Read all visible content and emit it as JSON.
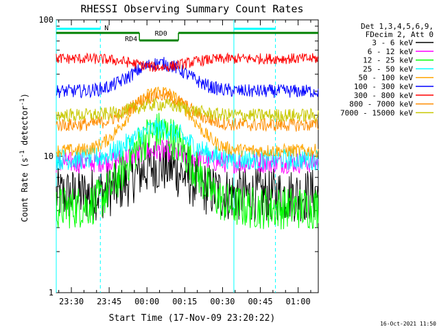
{
  "chart_data": {
    "type": "line",
    "title": "RHESSI Observing Summary Count Rates",
    "xlabel": "Start Time (17-Nov-09 23:20:22)",
    "ylabel_main": "Count Rate (s",
    "ylabel_sup1": "-1",
    "ylabel_mid": " detector",
    "ylabel_sup2": "-1",
    "ylabel_end": ")",
    "y_scale": "log",
    "ylim": [
      1,
      100
    ],
    "y_ticks": [
      {
        "value": 1,
        "label": "1"
      },
      {
        "value": 10,
        "label": "10"
      },
      {
        "value": 100,
        "label": "100"
      }
    ],
    "xlim_minutes": [
      -36.0,
      68.0
    ],
    "x_ticks": [
      {
        "minute": -30,
        "label": "23:30"
      },
      {
        "minute": -15,
        "label": "23:45"
      },
      {
        "minute": 0,
        "label": "00:00"
      },
      {
        "minute": 15,
        "label": "00:15"
      },
      {
        "minute": 30,
        "label": "00:30"
      },
      {
        "minute": 45,
        "label": "00:45"
      },
      {
        "minute": 60,
        "label": "01:00"
      }
    ],
    "legend_header": [
      "Det 1,3,4,5,6,9,",
      "FDecim 2, Att 0"
    ],
    "legend_position": "top-right",
    "series": [
      {
        "name": "3 - 6 keV",
        "color": "#000000",
        "base": 5.2,
        "peak": 8.5,
        "noise": 0.2
      },
      {
        "name": "6 - 12 keV",
        "color": "#ff00ff",
        "base": 9.0,
        "peak": 11.0,
        "noise": 0.08
      },
      {
        "name": "12 - 25 keV",
        "color": "#00ff00",
        "base": 4.2,
        "peak": 15.0,
        "noise": 0.16
      },
      {
        "name": "25 - 50 keV",
        "color": "#00ffff",
        "base": 9.5,
        "peak": 16.0,
        "noise": 0.08
      },
      {
        "name": "50 - 100 keV",
        "color": "#ffa500",
        "base": 11.0,
        "peak": 30.0,
        "noise": 0.05
      },
      {
        "name": "100 - 300 keV",
        "color": "#0000ff",
        "base": 30.0,
        "peak": 48.0,
        "noise": 0.05
      },
      {
        "name": "300 - 800 keV",
        "color": "#ff0000",
        "base": 52.0,
        "peak": 45.0,
        "noise": 0.04
      },
      {
        "name": "800 - 7000 keV",
        "color": "#ff8c00",
        "base": 17.0,
        "peak": 28.0,
        "noise": 0.05
      },
      {
        "name": "7000 - 15000 keV",
        "color": "#c8c800",
        "base": 20.0,
        "peak": 24.0,
        "noise": 0.05
      }
    ],
    "annotations": {
      "night_label": "N",
      "rd0_label": "RD0",
      "rd4_label": "RD4"
    },
    "cyan_vlines_solid_minutes": [
      -36.0,
      34.5
    ],
    "cyan_vlines_dashed_minutes": [
      -18.5,
      51.0
    ],
    "rd_bar_minutes": [
      [
        -36.0,
        -3.0
      ],
      [
        12.5,
        68.0
      ]
    ],
    "rd_drop_minutes": [
      -3.0,
      12.5
    ],
    "night_bar_minutes": [
      -36.0,
      -18.5
    ],
    "night_bar_right_minutes": [
      34.5,
      51.0
    ]
  },
  "timestamp": "16-Oct-2021 11:50"
}
